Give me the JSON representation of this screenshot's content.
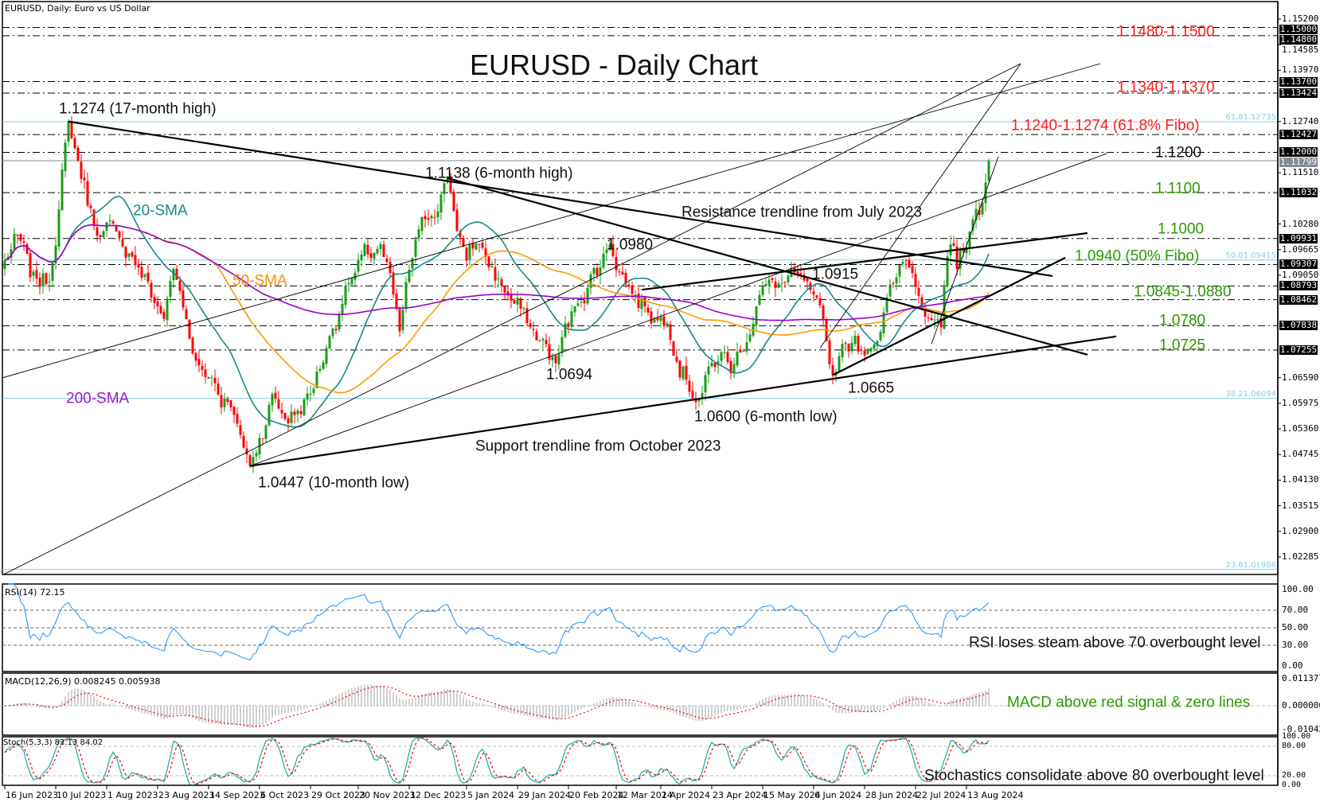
{
  "window": {
    "title": "EURUSD, Daily:  Euro vs US Dollar"
  },
  "chart_data": {
    "type": "candlestick",
    "title": "EURUSD - Daily Chart",
    "anchors": [
      [
        "2023-06-16",
        1.094
      ],
      [
        "2023-06-22",
        1.1
      ],
      [
        "2023-06-28",
        1.09
      ],
      [
        "2023-07-06",
        1.089
      ],
      [
        "2023-07-14",
        1.1274
      ],
      [
        "2023-07-18",
        1.121
      ],
      [
        "2023-07-27",
        1.1
      ],
      [
        "2023-08-04",
        1.101
      ],
      [
        "2023-08-11",
        1.095
      ],
      [
        "2023-08-25",
        1.08
      ],
      [
        "2023-08-30",
        1.092
      ],
      [
        "2023-09-08",
        1.07
      ],
      [
        "2023-09-15",
        1.066
      ],
      [
        "2023-09-26",
        1.057
      ],
      [
        "2023-10-03",
        1.0447
      ],
      [
        "2023-10-12",
        1.062
      ],
      [
        "2023-10-18",
        1.056
      ],
      [
        "2023-10-24",
        1.058
      ],
      [
        "2023-10-30",
        1.062
      ],
      [
        "2023-11-06",
        1.073
      ],
      [
        "2023-11-14",
        1.088
      ],
      [
        "2023-11-29",
        1.098
      ],
      [
        "2023-12-07",
        1.077
      ],
      [
        "2023-12-14",
        1.099
      ],
      [
        "2023-12-28",
        1.1138
      ],
      [
        "2024-01-05",
        1.094
      ],
      [
        "2024-01-11",
        1.098
      ],
      [
        "2024-01-22",
        1.088
      ],
      [
        "2024-02-02",
        1.078
      ],
      [
        "2024-02-14",
        1.0694
      ],
      [
        "2024-02-22",
        1.083
      ],
      [
        "2024-03-08",
        1.098
      ],
      [
        "2024-03-19",
        1.086
      ],
      [
        "2024-03-25",
        1.083
      ],
      [
        "2024-04-03",
        1.079
      ],
      [
        "2024-04-16",
        1.06
      ],
      [
        "2024-04-26",
        1.072
      ],
      [
        "2024-05-01",
        1.067
      ],
      [
        "2024-05-15",
        1.088
      ],
      [
        "2024-06-04",
        1.089
      ],
      [
        "2024-06-14",
        1.0665
      ],
      [
        "2024-06-19",
        1.074
      ],
      [
        "2024-07-02",
        1.073
      ],
      [
        "2024-07-12",
        1.09
      ],
      [
        "2024-07-17",
        1.094
      ],
      [
        "2024-08-01",
        1.078
      ],
      [
        "2024-08-05",
        1.095
      ],
      [
        "2024-08-08",
        1.092
      ],
      [
        "2024-08-14",
        1.101
      ],
      [
        "2024-08-20",
        1.108
      ],
      [
        "2024-08-22",
        1.118
      ]
    ],
    "sma_periods": [
      20,
      50,
      200
    ],
    "sma_colors": [
      "#148a8a",
      "#ff9900",
      "#9900cc"
    ],
    "candle_colors": {
      "up": "#1a9c1a",
      "down": "#ff0000"
    },
    "price_axis": {
      "range": [
        1.01986,
        1.152
      ],
      "ticks": [
        "1.15200",
        "1.14585",
        "1.13970",
        "1.12740",
        "1.11510",
        "1.10280",
        "1.09665",
        "1.09050",
        "1.06590",
        "1.05975",
        "1.05360",
        "1.04745",
        "1.04130",
        "1.03515",
        "1.02900",
        "1.02285"
      ],
      "highlighted": [
        "1.15000",
        "1.14800",
        "1.13700",
        "1.13424",
        "1.12427",
        "1.12000",
        "1.11032",
        "1.09931",
        "1.09307",
        "1.08793",
        "1.08462",
        "1.07838",
        "1.07255"
      ],
      "current_price": "1.11799"
    },
    "fibo": [
      {
        "value": 1.12735,
        "text": "61.81.12735"
      },
      {
        "value": 1.09415,
        "text": "50.01.09415"
      },
      {
        "value": 1.06094,
        "text": "38.21.06094"
      },
      {
        "value": 1.01986,
        "text": "23.61.01986"
      }
    ],
    "trendlines": [
      {
        "from": [
          "2023-07-14",
          1.1274
        ],
        "to": [
          "2024-09-19",
          1.0903
        ],
        "weight": "thick"
      },
      {
        "from": [
          "2023-10-03",
          1.0447
        ],
        "to": [
          "2024-10-17",
          1.0758
        ],
        "weight": "thick"
      },
      {
        "from": [
          "2023-12-28",
          1.1138
        ],
        "to": [
          "2024-10-04",
          1.0714
        ],
        "weight": "thick"
      },
      {
        "from": [
          "2024-06-14",
          1.0665
        ],
        "to": [
          "2024-09-25",
          1.0947
        ],
        "weight": "thick"
      },
      {
        "from": [
          "2024-03-22",
          1.087
        ],
        "to": [
          "2024-10-04",
          1.1006
        ],
        "weight": "thick"
      },
      {
        "from": [
          "2023-06-15",
          1.0184
        ],
        "to": [
          "2024-09-05",
          1.1413
        ],
        "weight": "thin"
      },
      {
        "from": [
          "2023-06-15",
          1.0658
        ],
        "to": [
          "2024-10-10",
          1.1413
        ],
        "weight": "thin"
      },
      {
        "from": [
          "2023-10-03",
          1.0447
        ],
        "to": [
          "2024-10-14",
          1.1197
        ],
        "weight": "thin"
      },
      {
        "from": [
          "2024-06-10",
          1.073
        ],
        "to": [
          "2024-09-05",
          1.1413
        ],
        "weight": "thin"
      },
      {
        "from": [
          "2024-07-29",
          1.074
        ],
        "to": [
          "2024-08-27",
          1.119
        ],
        "weight": "thin"
      }
    ],
    "annotations": {
      "high_17m": "1.1274 (17-month high)",
      "high_6m": "1.1138 (6-month high)",
      "sma20": "20-SMA",
      "sma50": "50-SMA",
      "sma200": "200-SMA",
      "resistance": "Resistance trendline from July 2023",
      "p1_0980": "1.0980",
      "p1_0915": "1.0915",
      "p1_0694": "1.0694",
      "p1_0665": "1.0665",
      "low_6m": "1.0600 (6-month low)",
      "support": "Support trendline from October 2023",
      "low_10m": "1.0447 (10-month low)",
      "r1": "1.1480-1.1500",
      "r2": "1.1340-1.1370",
      "r3": "1.1240-1.1274 (61.8% Fibo)",
      "l1200": "1.1200",
      "l1100": "1.1100",
      "l1000": "1.1000",
      "l0940": "1.0940 (50% Fibo)",
      "l0845": "1.0845-1.0880",
      "l0780": "1.0780",
      "l0725": "1.0725",
      "rsi_note": "RSI loses steam above 70 overbought level",
      "macd_note": "MACD above red signal & zero lines",
      "stoch_note": "Stochastics consolidate above 80 overbought level"
    },
    "indicators": {
      "rsi": {
        "label": "RSI(14) 72.15",
        "ticks": [
          "100.00",
          "70.00",
          "50.00",
          "30.00",
          "0.00"
        ],
        "color": "#1e90ff"
      },
      "macd": {
        "label": "MACD(12,26,9) 0.008245 0.005938",
        "ticks": [
          "0.011377",
          "0.000000",
          "-0.010423"
        ]
      },
      "stoch": {
        "label": "Stoch(5,3,3) 82.13 84.02",
        "ticks": [
          "100.00",
          "80.00",
          "20.00",
          "0.00"
        ],
        "color": "#20b2aa"
      }
    },
    "x_ticks": [
      {
        "label": "16 Jun 2023",
        "date": "2023-06-16"
      },
      {
        "label": "10 Jul 2023",
        "date": "2023-07-10"
      },
      {
        "label": "1 Aug 2023",
        "date": "2023-08-01"
      },
      {
        "label": "23 Aug 2023",
        "date": "2023-08-23"
      },
      {
        "label": "14 Sep 2023",
        "date": "2023-09-14"
      },
      {
        "label": "6 Oct 2023",
        "date": "2023-10-06"
      },
      {
        "label": "29 Oct 2023",
        "date": "2023-10-29"
      },
      {
        "label": "20 Nov 2023",
        "date": "2023-11-20"
      },
      {
        "label": "12 Dec 2023",
        "date": "2023-12-12"
      },
      {
        "label": "5 Jan 2024",
        "date": "2024-01-05"
      },
      {
        "label": "29 Jan 2024",
        "date": "2024-01-29"
      },
      {
        "label": "20 Feb 2024",
        "date": "2024-02-20"
      },
      {
        "label": "12 Mar 2024",
        "date": "2024-03-12"
      },
      {
        "label": "1 Apr 2024",
        "date": "2024-04-01"
      },
      {
        "label": "23 Apr 2024",
        "date": "2024-04-23"
      },
      {
        "label": "15 May 2024",
        "date": "2024-05-15"
      },
      {
        "label": "6 Jun 2024",
        "date": "2024-06-06"
      },
      {
        "label": "28 Jun 2024",
        "date": "2024-06-28"
      },
      {
        "label": "22 Jul 2024",
        "date": "2024-07-22"
      },
      {
        "label": "13 Aug 2024",
        "date": "2024-08-13"
      }
    ]
  }
}
